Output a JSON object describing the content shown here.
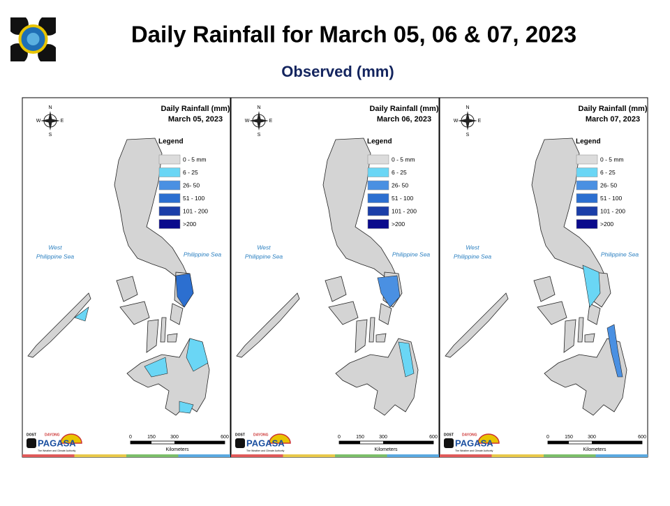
{
  "header": {
    "title": "Daily Rainfall for March 05, 06 & 07, 2023",
    "subtitle": "Observed (mm)"
  },
  "panel_title": "Daily Rainfall (mm)",
  "panels": [
    {
      "date": "March 05, 2023"
    },
    {
      "date": "March 06, 2023"
    },
    {
      "date": "March 07, 2023"
    }
  ],
  "legend": {
    "title": "Legend",
    "items": [
      "0 - 5 mm",
      "6 - 25",
      "26- 50",
      "51 - 100",
      "101 - 200",
      ">200"
    ]
  },
  "seas": {
    "west_line1": "West",
    "west_line2": "Philippine Sea",
    "east": "Philippine Sea"
  },
  "compass": {
    "n": "N",
    "e": "E",
    "s": "S",
    "w": "W"
  },
  "scale": {
    "ticks": [
      "0",
      "150",
      "300",
      "600"
    ],
    "unit": "Kilometers"
  },
  "logo": {
    "dost": "DOST",
    "dayong": "DAYONG",
    "name": "PAGASA",
    "tagline": "The Weather and Climate Authority"
  }
}
